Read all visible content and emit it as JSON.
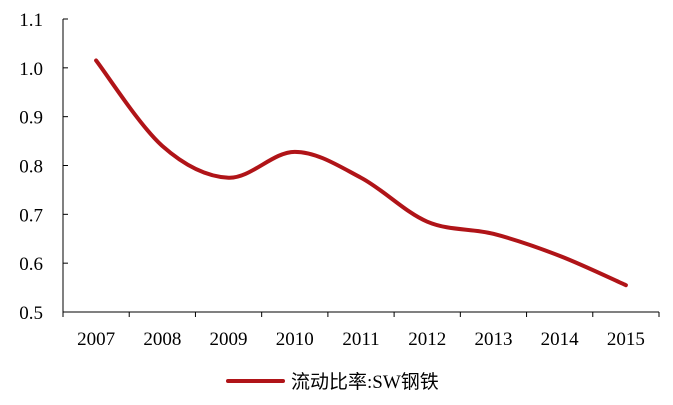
{
  "chart_data": {
    "type": "line",
    "title": "",
    "xlabel": "",
    "ylabel": "",
    "categories": [
      "2007",
      "2008",
      "2009",
      "2010",
      "2011",
      "2012",
      "2013",
      "2014",
      "2015"
    ],
    "ylim": [
      0.5,
      1.1
    ],
    "yticks": [
      "0.5",
      "0.6",
      "0.7",
      "0.8",
      "0.9",
      "1.0",
      "1.1"
    ],
    "grid": false,
    "legend_position": "bottom",
    "series": [
      {
        "name": "流动比率:SW钢铁",
        "color": "#b01418",
        "values": [
          1.015,
          0.84,
          0.775,
          0.828,
          0.775,
          0.685,
          0.66,
          0.615,
          0.555
        ]
      }
    ]
  }
}
